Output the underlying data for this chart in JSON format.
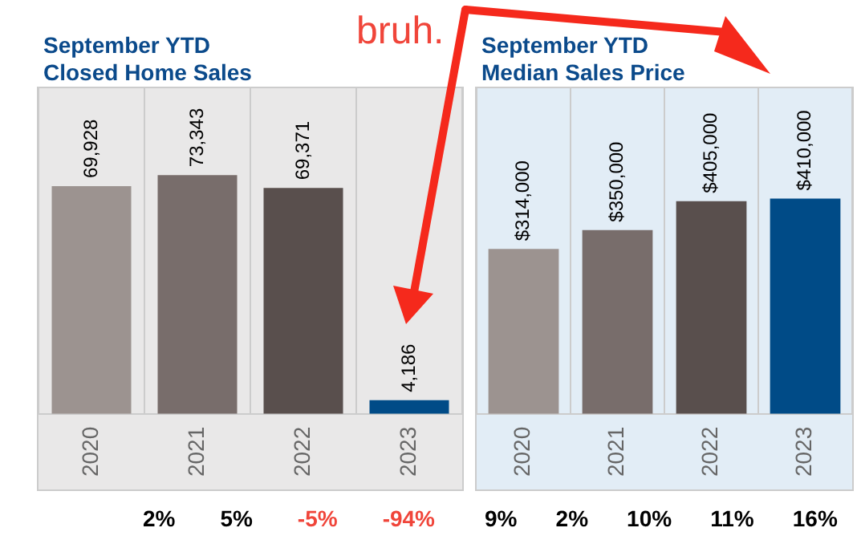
{
  "chart_data": [
    {
      "type": "bar",
      "title": "September YTD\nClosed Home Sales",
      "categories": [
        "2020",
        "2021",
        "2022",
        "2023"
      ],
      "values": [
        69928,
        73343,
        69371,
        4186
      ],
      "colors": [
        "#9c9390",
        "#786d6b",
        "#594f4d",
        "#004b87"
      ],
      "value_labels": [
        "69,928",
        "73,343",
        "69,371",
        "4,186"
      ],
      "ylim": [
        0,
        100000
      ],
      "tick_labels": "x",
      "grid": "x",
      "legend": false,
      "annotations": [
        "bruh.",
        "2%",
        "5%",
        "-5%",
        "-94%"
      ]
    },
    {
      "type": "bar",
      "title": "September YTD\nMedian Sales Price",
      "categories": [
        "2020",
        "2021",
        "2022",
        "2023"
      ],
      "values": [
        314000,
        350000,
        405000,
        410000
      ],
      "colors": [
        "#9c9390",
        "#786d6b",
        "#594f4d",
        "#004b87"
      ],
      "value_labels": [
        "$314,000",
        "$350,000",
        "$405,000",
        "$410,000"
      ],
      "ylim": [
        0,
        620000
      ],
      "tick_labels": "x",
      "grid": "x",
      "legend": false,
      "annotations": [
        "9%",
        "2%",
        "10%",
        "11%",
        "16%"
      ]
    }
  ]
}
